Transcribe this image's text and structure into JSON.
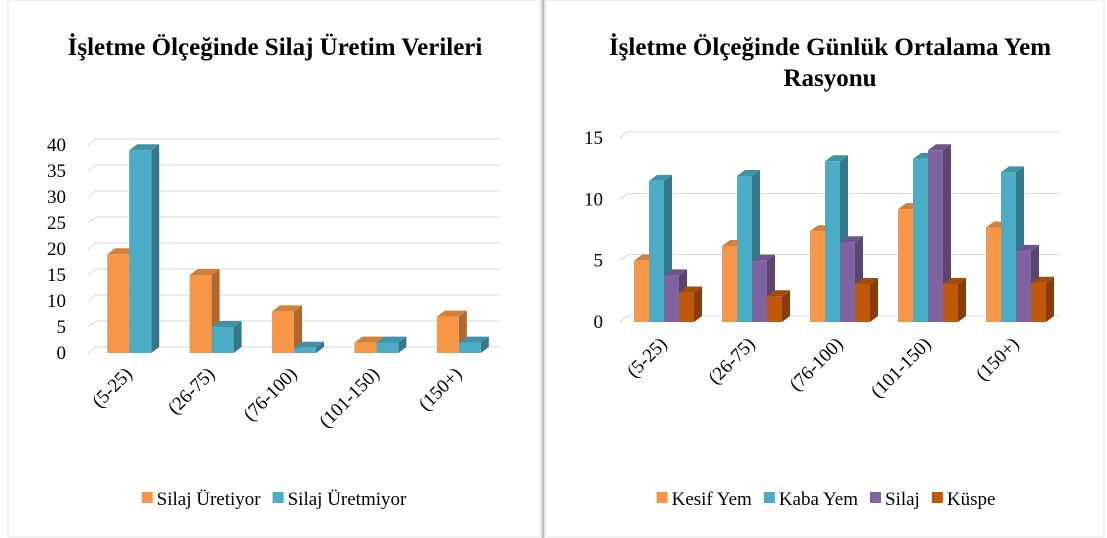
{
  "chart_data": [
    {
      "type": "bar3d",
      "title": "İşletme Ölçeğinde Silaj Üretim Verileri",
      "categories": [
        "(5-25)",
        "(26-75)",
        "(76-100)",
        "(101-150)",
        "(150+)"
      ],
      "series": [
        {
          "name": "Silaj Üretiyor",
          "color": "#f79646",
          "values": [
            19,
            15,
            8,
            2,
            7
          ]
        },
        {
          "name": "Silaj Üretmiyor",
          "color": "#4bacc6",
          "values": [
            39,
            5,
            1,
            2,
            2
          ]
        }
      ],
      "ylim": [
        0,
        40
      ],
      "yticks": [
        0,
        5,
        10,
        15,
        20,
        25,
        30,
        35,
        40
      ],
      "grid": true,
      "legend": "bottom"
    },
    {
      "type": "bar3d",
      "title": "İşletme Ölçeğinde Günlük Ortalama Yem Rasyonu",
      "categories": [
        "(5-25)",
        "(26-75)",
        "(76-100)",
        "(101-150)",
        "(150+)"
      ],
      "series": [
        {
          "name": "Kesif Yem",
          "color": "#f79646",
          "values": [
            5,
            6.2,
            7.4,
            9.2,
            7.7
          ]
        },
        {
          "name": "Kaba Yem",
          "color": "#4bacc6",
          "values": [
            11.5,
            11.9,
            13.1,
            13.3,
            12.2
          ]
        },
        {
          "name": "Silaj",
          "color": "#8064a2",
          "values": [
            3.8,
            5,
            6.5,
            14,
            5.8
          ]
        },
        {
          "name": "Küspe",
          "color": "#c0590e",
          "values": [
            2.4,
            2.1,
            3.1,
            3.1,
            3.2
          ]
        }
      ],
      "ylim": [
        0,
        15
      ],
      "yticks": [
        0,
        5,
        10,
        15
      ],
      "grid": true,
      "legend": "bottom"
    }
  ]
}
